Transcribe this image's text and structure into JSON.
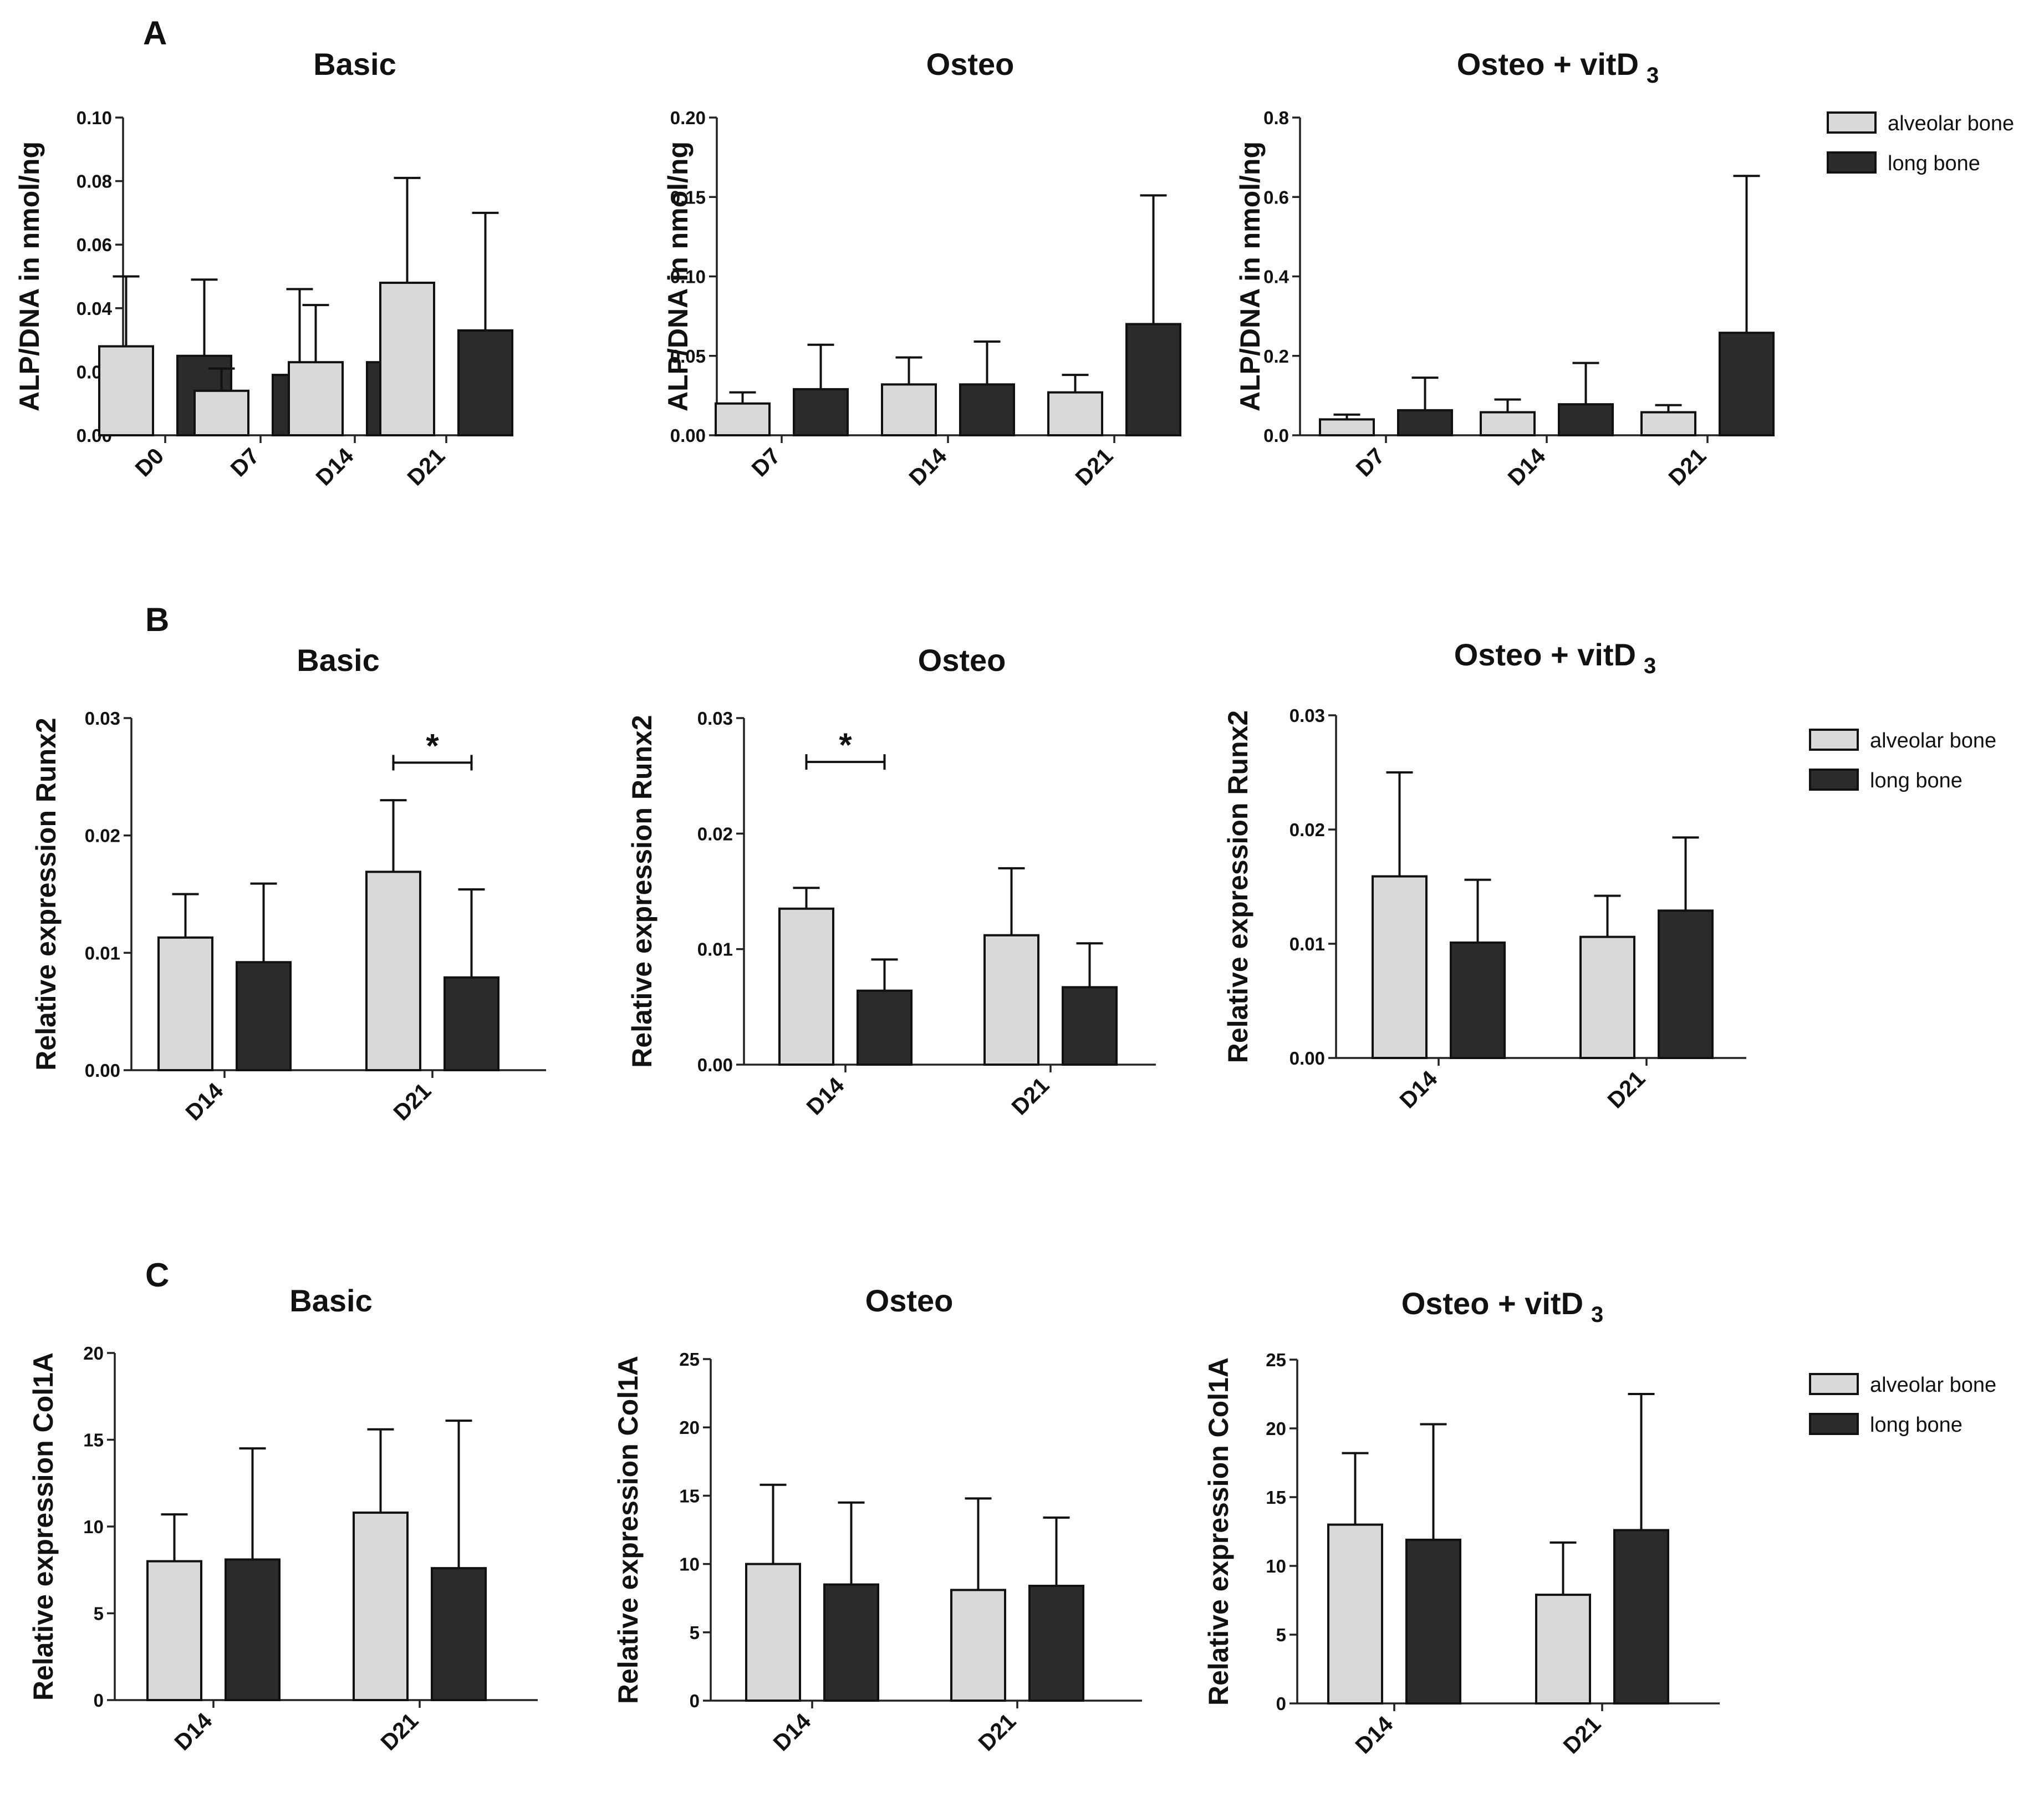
{
  "colors": {
    "alveolar": "#d9d9d9",
    "long": "#2b2b2b",
    "ink": "#111111"
  },
  "legend_labels": [
    "alveolar bone",
    "long bone"
  ],
  "chart_data": [
    {
      "panel": "A",
      "type": "bar",
      "title": "Basic",
      "ylabel": "ALP/DNA in nmol/ng",
      "ylim": [
        0,
        0.1
      ],
      "yticks": [
        "0.00",
        "0.02",
        "0.04",
        "0.06",
        "0.08",
        "0.10"
      ],
      "categories": [
        "D0",
        "D7",
        "D14",
        "D21"
      ],
      "series": [
        {
          "name": "alveolar bone",
          "values": [
            0.028,
            0.014,
            0.023,
            0.048
          ],
          "errors": [
            0.022,
            0.007,
            0.018,
            0.033
          ]
        },
        {
          "name": "long bone",
          "values": [
            0.025,
            0.019,
            0.023,
            0.033
          ],
          "errors": [
            0.024,
            0.027,
            0.023,
            0.037
          ]
        }
      ],
      "significance": []
    },
    {
      "panel": "A",
      "type": "bar",
      "title": "Osteo",
      "ylabel": "ALP/DNA in nmol/ng",
      "ylim": [
        0,
        0.2
      ],
      "yticks": [
        "0.00",
        "0.05",
        "0.10",
        "0.15",
        "0.20"
      ],
      "categories": [
        "D7",
        "D14",
        "D21"
      ],
      "series": [
        {
          "name": "alveolar bone",
          "values": [
            0.02,
            0.032,
            0.027
          ],
          "errors": [
            0.007,
            0.017,
            0.011
          ]
        },
        {
          "name": "long bone",
          "values": [
            0.029,
            0.032,
            0.07
          ],
          "errors": [
            0.028,
            0.027,
            0.081
          ]
        }
      ],
      "significance": []
    },
    {
      "panel": "A",
      "type": "bar",
      "title": "Osteo + vitD",
      "title_sub": "3",
      "ylabel": "ALP/DNA in nmol/ng",
      "ylim": [
        0,
        0.8
      ],
      "yticks": [
        "0.0",
        "0.2",
        "0.4",
        "0.6",
        "0.8"
      ],
      "categories": [
        "D7",
        "D14",
        "D21"
      ],
      "series": [
        {
          "name": "alveolar bone",
          "values": [
            0.04,
            0.058,
            0.058
          ],
          "errors": [
            0.012,
            0.032,
            0.018
          ]
        },
        {
          "name": "long bone",
          "values": [
            0.063,
            0.078,
            0.258
          ],
          "errors": [
            0.082,
            0.104,
            0.395
          ]
        }
      ],
      "significance": [],
      "legend": true
    },
    {
      "panel": "B",
      "type": "bar",
      "title": "Basic",
      "ylabel": "Relative expression Runx2",
      "ylim": [
        0,
        0.03
      ],
      "yticks": [
        "0.00",
        "0.01",
        "0.02",
        "0.03"
      ],
      "categories": [
        "D14",
        "D21"
      ],
      "series": [
        {
          "name": "alveolar bone",
          "values": [
            0.0113,
            0.0169
          ],
          "errors": [
            0.0037,
            0.0061
          ]
        },
        {
          "name": "long bone",
          "values": [
            0.0092,
            0.0079
          ],
          "errors": [
            0.0067,
            0.0075
          ]
        }
      ],
      "significance": [
        {
          "category": 1,
          "label": "*",
          "level": 0.0262
        }
      ]
    },
    {
      "panel": "B",
      "type": "bar",
      "title": "Osteo",
      "ylabel": "Relative expression Runx2",
      "ylim": [
        0,
        0.03
      ],
      "yticks": [
        "0.00",
        "0.01",
        "0.02",
        "0.03"
      ],
      "categories": [
        "D14",
        "D21"
      ],
      "series": [
        {
          "name": "alveolar bone",
          "values": [
            0.0135,
            0.0112
          ],
          "errors": [
            0.0018,
            0.0058
          ]
        },
        {
          "name": "long bone",
          "values": [
            0.0064,
            0.0067
          ],
          "errors": [
            0.0027,
            0.0038
          ]
        }
      ],
      "significance": [
        {
          "category": 0,
          "label": "*",
          "level": 0.0262
        }
      ]
    },
    {
      "panel": "B",
      "type": "bar",
      "title": "Osteo + vitD",
      "title_sub": "3",
      "ylabel": "Relative expression Runx2",
      "ylim": [
        0,
        0.03
      ],
      "yticks": [
        "0.00",
        "0.01",
        "0.02",
        "0.03"
      ],
      "categories": [
        "D14",
        "D21"
      ],
      "series": [
        {
          "name": "alveolar bone",
          "values": [
            0.0159,
            0.0106
          ],
          "errors": [
            0.0091,
            0.0036
          ]
        },
        {
          "name": "long bone",
          "values": [
            0.0101,
            0.0129
          ],
          "errors": [
            0.0055,
            0.0064
          ]
        }
      ],
      "significance": [],
      "legend": true
    },
    {
      "panel": "C",
      "type": "bar",
      "title": "Basic",
      "ylabel": "Relative expression  Col1A",
      "ylim": [
        0,
        20
      ],
      "yticks": [
        "0",
        "5",
        "10",
        "15",
        "20"
      ],
      "categories": [
        "D14",
        "D21"
      ],
      "series": [
        {
          "name": "alveolar bone",
          "values": [
            8.0,
            10.8
          ],
          "errors": [
            2.7,
            4.8
          ]
        },
        {
          "name": "long bone",
          "values": [
            8.1,
            7.6
          ],
          "errors": [
            6.4,
            8.5
          ]
        }
      ],
      "significance": []
    },
    {
      "panel": "C",
      "type": "bar",
      "title": "Osteo",
      "ylabel": "Relative expression  Col1A",
      "ylim": [
        0,
        25
      ],
      "yticks": [
        "0",
        "5",
        "10",
        "15",
        "20",
        "25"
      ],
      "categories": [
        "D14",
        "D21"
      ],
      "series": [
        {
          "name": "alveolar bone",
          "values": [
            10.0,
            8.1
          ],
          "errors": [
            5.8,
            6.7
          ]
        },
        {
          "name": "long bone",
          "values": [
            8.5,
            8.4
          ],
          "errors": [
            6.0,
            5.0
          ]
        }
      ],
      "significance": []
    },
    {
      "panel": "C",
      "type": "bar",
      "title": "Osteo + vitD",
      "title_sub": "3",
      "ylabel": "Relative expression  Col1A",
      "ylim": [
        0,
        25
      ],
      "yticks": [
        "0",
        "5",
        "10",
        "15",
        "20",
        "25"
      ],
      "categories": [
        "D14",
        "D21"
      ],
      "series": [
        {
          "name": "alveolar bone",
          "values": [
            13.0,
            7.9
          ],
          "errors": [
            5.2,
            3.8
          ]
        },
        {
          "name": "long bone",
          "values": [
            11.9,
            12.6
          ],
          "errors": [
            8.4,
            9.9
          ]
        }
      ],
      "significance": [],
      "legend": true
    }
  ]
}
